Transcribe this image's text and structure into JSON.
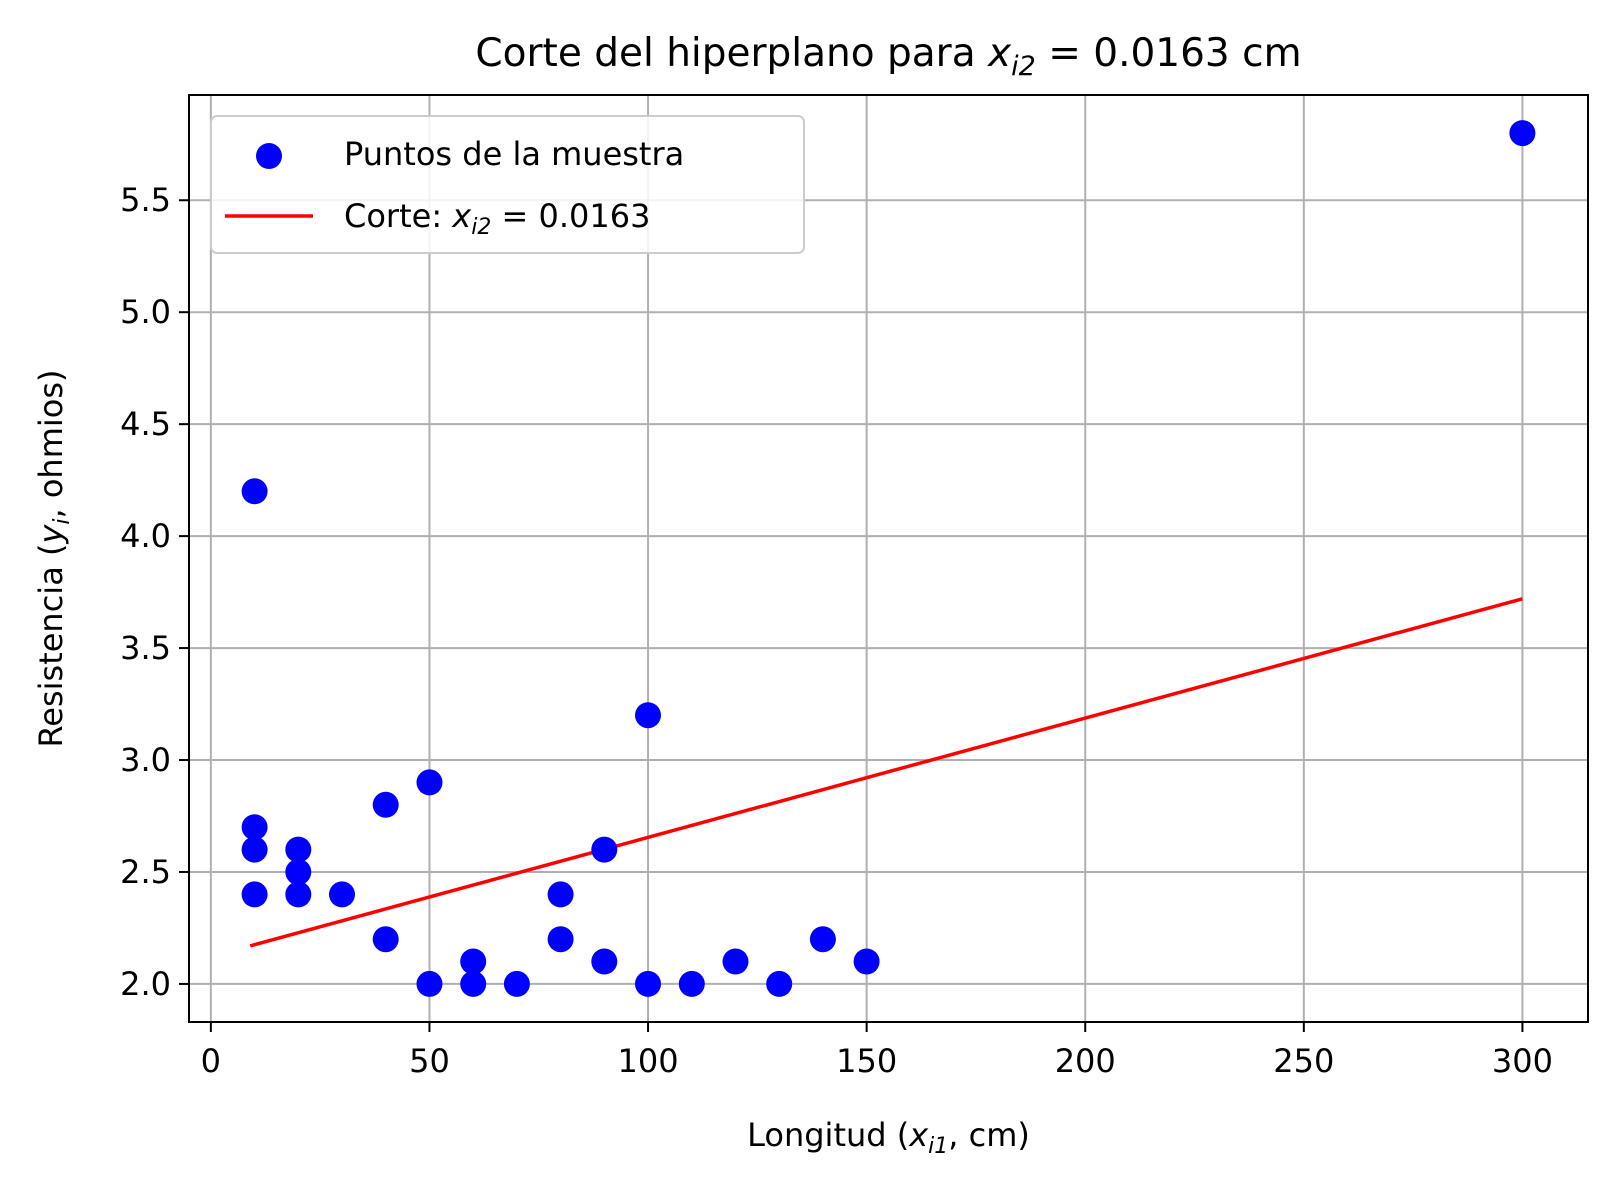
{
  "chart_data": {
    "type": "scatter",
    "title": "Corte del hiperplano para x_i2 = 0.0163 cm",
    "title_parts": [
      "Corte del hiperplano para ",
      "x",
      "i2",
      " = 0.0163 cm"
    ],
    "xlabel": "Longitud (x_i1, cm)",
    "xlabel_parts": [
      "Longitud (",
      "x",
      "i1",
      ", cm)"
    ],
    "ylabel": "Resistencia (y_i, ohmios)",
    "ylabel_parts": [
      "Resistencia (",
      "y",
      "i",
      ", ohmios)"
    ],
    "xlim": [
      -5,
      315
    ],
    "ylim": [
      1.83,
      5.97
    ],
    "xticks": [
      0,
      50,
      100,
      150,
      200,
      250,
      300
    ],
    "xtick_labels": [
      "0",
      "50",
      "100",
      "150",
      "200",
      "250",
      "300"
    ],
    "yticks": [
      2.0,
      2.5,
      3.0,
      3.5,
      4.0,
      4.5,
      5.0,
      5.5
    ],
    "ytick_labels": [
      "2.0",
      "2.5",
      "3.0",
      "3.5",
      "4.0",
      "4.5",
      "5.0",
      "5.5"
    ],
    "grid": true,
    "legend_position": "upper-left",
    "series": [
      {
        "name": "Puntos de la muestra",
        "legend_parts": [
          "Puntos de la muestra",
          "",
          "",
          ""
        ],
        "kind": "scatter",
        "color": "#0000ff",
        "points": [
          [
            10,
            4.2
          ],
          [
            10,
            2.7
          ],
          [
            10,
            2.6
          ],
          [
            10,
            2.4
          ],
          [
            20,
            2.6
          ],
          [
            20,
            2.5
          ],
          [
            20,
            2.4
          ],
          [
            30,
            2.4
          ],
          [
            40,
            2.8
          ],
          [
            40,
            2.2
          ],
          [
            50,
            2.9
          ],
          [
            50,
            2.0
          ],
          [
            60,
            2.1
          ],
          [
            60,
            2.0
          ],
          [
            70,
            2.0
          ],
          [
            80,
            2.4
          ],
          [
            80,
            2.2
          ],
          [
            90,
            2.6
          ],
          [
            90,
            2.1
          ],
          [
            100,
            3.2
          ],
          [
            100,
            2.0
          ],
          [
            110,
            2.0
          ],
          [
            120,
            2.1
          ],
          [
            130,
            2.0
          ],
          [
            140,
            2.2
          ],
          [
            150,
            2.1
          ],
          [
            300,
            5.8
          ]
        ]
      },
      {
        "name": "Corte: x_i2 = 0.0163",
        "legend_parts": [
          "Corte: ",
          "x",
          "i2",
          " = 0.0163"
        ],
        "kind": "line",
        "color": "#ff0000",
        "points": [
          [
            9,
            2.17
          ],
          [
            300,
            3.72
          ]
        ]
      }
    ]
  }
}
